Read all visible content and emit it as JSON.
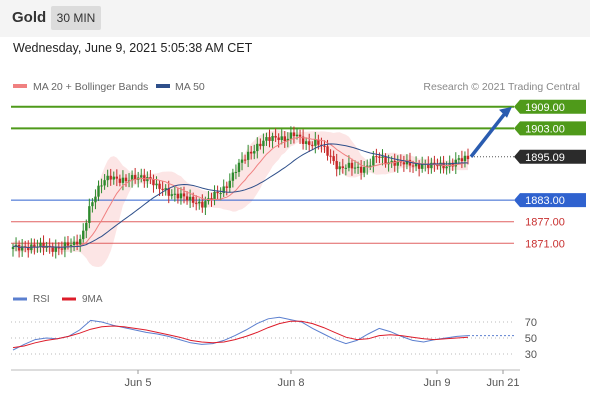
{
  "header": {
    "title": "Gold",
    "period": "30 MIN"
  },
  "timestamp": "Wednesday, June 9, 2021 5:05:38 AM CET",
  "legend": {
    "ma20": {
      "label": "MA 20 + Bollinger Bands",
      "color": "#f08080"
    },
    "ma50": {
      "label": "MA 50",
      "color": "#2e4f8a"
    },
    "credit": "Research © 2021 Trading Central"
  },
  "chart_data": [
    {
      "type": "candlestick",
      "title": "",
      "ylim": [
        1858,
        1912
      ],
      "levels": [
        {
          "value": "1909.00",
          "color": "#4f9a1a",
          "kind": "resistance"
        },
        {
          "value": "1903.00",
          "color": "#4f9a1a",
          "kind": "resistance"
        },
        {
          "value": "1895.09",
          "color": "#2b2b2b",
          "kind": "last"
        },
        {
          "value": "1883.00",
          "color": "#2f62cf",
          "kind": "pivot"
        },
        {
          "value": "1877.00",
          "color": "#e06060",
          "kind": "support"
        },
        {
          "value": "1871.00",
          "color": "#e06060",
          "kind": "support"
        }
      ],
      "close_path": [
        1870,
        1869,
        1870,
        1871,
        1870,
        1869,
        1870,
        1871,
        1870,
        1872,
        1881,
        1885,
        1888,
        1890,
        1889,
        1888,
        1889,
        1890,
        1889,
        1886,
        1886,
        1885,
        1884,
        1883,
        1883,
        1882,
        1883,
        1885,
        1887,
        1890,
        1893,
        1896,
        1898,
        1899,
        1900,
        1901,
        1900,
        1901,
        1900,
        1899,
        1899,
        1897,
        1895,
        1892,
        1892,
        1892,
        1892,
        1893,
        1895,
        1894,
        1894,
        1893,
        1893,
        1893,
        1893,
        1892,
        1893,
        1893,
        1893,
        1894,
        1895
      ],
      "projection": {
        "from": 1895.09,
        "to": 1909
      },
      "x_ticks": [
        "Jun 5",
        "Jun 8",
        "Jun 9",
        "Jun 21"
      ],
      "series": [
        {
          "name": "MA 20 + Bollinger Bands",
          "color": "#f08080"
        },
        {
          "name": "MA 50",
          "color": "#2e4f8a"
        }
      ]
    },
    {
      "type": "line",
      "ylim": [
        15,
        85
      ],
      "y_ticks": [
        "70",
        "50",
        "30"
      ],
      "series": [
        {
          "name": "RSI",
          "color": "#5b7fcf",
          "values": [
            35,
            42,
            48,
            50,
            49,
            52,
            60,
            72,
            70,
            66,
            63,
            60,
            57,
            55,
            52,
            48,
            44,
            42,
            43,
            47,
            53,
            60,
            68,
            74,
            76,
            73,
            70,
            62,
            55,
            48,
            43,
            47,
            55,
            62,
            58,
            52,
            47,
            45,
            48,
            50,
            52,
            53
          ]
        },
        {
          "name": "9MA",
          "color": "#dd1c2a",
          "values": [
            38,
            40,
            44,
            47,
            49,
            52,
            56,
            61,
            64,
            65,
            64,
            62,
            60,
            57,
            54,
            51,
            47,
            45,
            44,
            45,
            48,
            52,
            57,
            63,
            68,
            71,
            71,
            68,
            63,
            57,
            51,
            48,
            49,
            53,
            54,
            53,
            51,
            49,
            48,
            49,
            50,
            51
          ]
        }
      ]
    }
  ]
}
